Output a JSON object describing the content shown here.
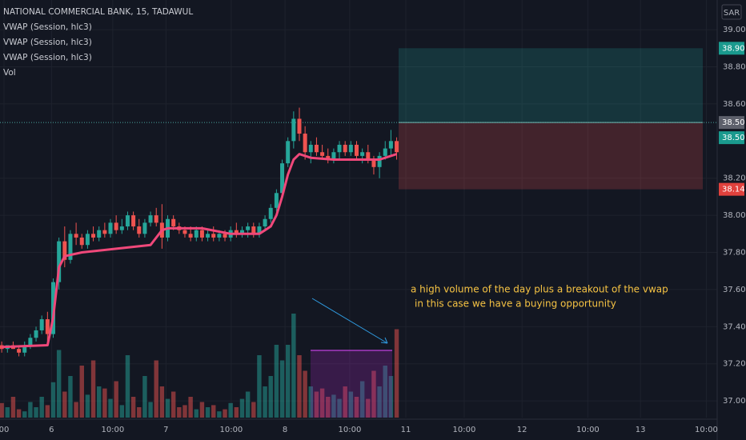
{
  "chart_data": {
    "type": "candlestick",
    "title": "NATIONAL COMMERCIAL BANK, 15, TADAWUL",
    "indicator_labels": [
      "VWAP (Session, hlc3)",
      "VWAP (Session, hlc3)",
      "VWAP (Session, hlc3)",
      "Vol"
    ],
    "currency": "SAR",
    "up_color": "#26a69a",
    "down_color": "#ef5350",
    "grid": true,
    "xlim": [
      -0.3,
      125
    ],
    "xticks": [
      {
        "value": 0.4,
        "label": "00"
      },
      {
        "value": 8.7,
        "label": "6"
      },
      {
        "value": 19.4,
        "label": "10:00"
      },
      {
        "value": 28.7,
        "label": "7"
      },
      {
        "value": 40.1,
        "label": "10:00"
      },
      {
        "value": 49.5,
        "label": "8"
      },
      {
        "value": 60.8,
        "label": "10:00"
      },
      {
        "value": 70.6,
        "label": "11"
      },
      {
        "value": 80.8,
        "label": "10:00"
      },
      {
        "value": 90.9,
        "label": "12"
      },
      {
        "value": 102.4,
        "label": "10:00"
      },
      {
        "value": 111.6,
        "label": "13"
      },
      {
        "value": 123.1,
        "label": "10:00"
      }
    ],
    "ylim": [
      36.91,
      39.16
    ],
    "yticks": [
      {
        "value": 39.0,
        "label": "39.00"
      },
      {
        "value": 38.8,
        "label": "38.80"
      },
      {
        "value": 38.6,
        "label": "38.60"
      },
      {
        "value": 38.2,
        "label": "38.20"
      },
      {
        "value": 38.0,
        "label": "38.00"
      },
      {
        "value": 37.8,
        "label": "37.80"
      },
      {
        "value": 37.6,
        "label": "37.60"
      },
      {
        "value": 37.4,
        "label": "37.40"
      },
      {
        "value": 37.2,
        "label": "37.20"
      },
      {
        "value": 37.0,
        "label": "37.00"
      }
    ],
    "open": [
      37.3,
      37.28,
      37.3,
      37.28,
      37.26,
      37.3,
      37.34,
      37.38,
      37.44,
      37.36,
      37.64,
      37.86,
      37.76,
      37.9,
      37.88,
      37.84,
      37.9,
      37.88,
      37.92,
      37.9,
      37.96,
      37.92,
      37.94,
      38.0,
      37.94,
      37.9,
      37.96,
      38.0,
      37.96,
      37.88,
      37.98,
      37.94,
      37.92,
      37.9,
      37.88,
      37.92,
      37.88,
      37.9,
      37.88,
      37.9,
      37.88,
      37.92,
      37.9,
      37.92,
      37.94,
      37.9,
      37.94,
      37.98,
      38.04,
      38.12,
      38.28,
      38.4,
      38.52,
      38.44,
      38.34,
      38.38,
      38.34,
      38.32,
      38.3,
      38.34,
      38.38,
      38.34,
      38.38,
      38.32,
      38.34,
      38.3,
      38.26,
      38.32,
      38.36,
      38.4
    ],
    "high": [
      37.32,
      37.3,
      37.32,
      37.3,
      37.32,
      37.36,
      37.4,
      37.46,
      37.48,
      37.66,
      37.88,
      37.94,
      37.92,
      37.96,
      37.9,
      37.92,
      37.94,
      37.94,
      37.96,
      37.98,
      38.0,
      37.98,
      38.02,
      38.02,
      37.98,
      37.98,
      38.02,
      38.04,
      38.06,
      38.0,
      38.0,
      37.96,
      37.94,
      37.94,
      37.94,
      37.94,
      37.92,
      37.94,
      37.92,
      37.92,
      37.94,
      37.96,
      37.94,
      37.96,
      37.96,
      37.96,
      38.0,
      38.06,
      38.14,
      38.3,
      38.42,
      38.56,
      38.58,
      38.48,
      38.4,
      38.42,
      38.38,
      38.36,
      38.36,
      38.4,
      38.4,
      38.4,
      38.4,
      38.36,
      38.38,
      38.32,
      38.34,
      38.4,
      38.46,
      38.42
    ],
    "low": [
      37.26,
      37.26,
      37.28,
      37.24,
      37.24,
      37.28,
      37.32,
      37.36,
      37.32,
      37.34,
      37.6,
      37.72,
      37.74,
      37.84,
      37.82,
      37.82,
      37.86,
      37.86,
      37.88,
      37.88,
      37.9,
      37.9,
      37.92,
      37.92,
      37.88,
      37.88,
      37.94,
      37.94,
      37.82,
      37.86,
      37.92,
      37.9,
      37.88,
      37.86,
      37.86,
      37.86,
      37.86,
      37.86,
      37.86,
      37.86,
      37.86,
      37.88,
      37.88,
      37.88,
      37.88,
      37.88,
      37.92,
      37.96,
      38.02,
      38.1,
      38.26,
      38.36,
      38.4,
      38.3,
      38.28,
      38.32,
      38.3,
      38.28,
      38.28,
      38.3,
      38.32,
      38.32,
      38.3,
      38.28,
      38.28,
      38.22,
      38.2,
      38.3,
      38.32,
      38.3
    ],
    "close": [
      37.28,
      37.3,
      37.28,
      37.26,
      37.3,
      37.34,
      37.38,
      37.44,
      37.36,
      37.64,
      37.86,
      37.76,
      37.9,
      37.88,
      37.84,
      37.9,
      37.88,
      37.92,
      37.9,
      37.96,
      37.92,
      37.94,
      38.0,
      37.94,
      37.9,
      37.96,
      38.0,
      37.96,
      37.88,
      37.98,
      37.94,
      37.92,
      37.9,
      37.88,
      37.92,
      37.88,
      37.9,
      37.88,
      37.9,
      37.88,
      37.92,
      37.9,
      37.92,
      37.94,
      37.9,
      37.94,
      37.98,
      38.04,
      38.12,
      38.28,
      38.4,
      38.52,
      38.44,
      38.34,
      38.38,
      38.34,
      38.32,
      38.3,
      38.34,
      38.38,
      38.34,
      38.38,
      38.32,
      38.34,
      38.3,
      38.26,
      38.32,
      38.36,
      38.4,
      38.34
    ],
    "volume_ylim": [
      0,
      200
    ],
    "volume": [
      14,
      10,
      20,
      8,
      6,
      15,
      10,
      20,
      12,
      34,
      65,
      25,
      40,
      15,
      50,
      22,
      55,
      30,
      28,
      18,
      35,
      12,
      60,
      20,
      10,
      40,
      15,
      55,
      30,
      18,
      25,
      10,
      12,
      20,
      8,
      15,
      10,
      12,
      6,
      8,
      14,
      10,
      18,
      25,
      15,
      60,
      30,
      40,
      70,
      55,
      70,
      100,
      60,
      45,
      30,
      25,
      28,
      20,
      22,
      18,
      30,
      25,
      20,
      35,
      18,
      45,
      30,
      50,
      40,
      85
    ],
    "vwap": {
      "color": "#f0487a",
      "x": [
        0,
        8,
        9,
        10,
        11,
        14,
        20,
        26,
        27,
        28,
        29,
        35,
        40,
        45,
        46,
        47,
        48,
        49,
        50,
        51,
        52,
        54,
        58,
        62,
        66,
        69
      ],
      "values": [
        37.29,
        37.3,
        37.45,
        37.72,
        37.78,
        37.8,
        37.82,
        37.84,
        37.88,
        37.92,
        37.93,
        37.93,
        37.9,
        37.9,
        37.92,
        37.94,
        38.0,
        38.1,
        38.22,
        38.3,
        38.33,
        38.31,
        38.3,
        38.3,
        38.3,
        38.33
      ]
    },
    "position": {
      "target": {
        "value": 38.9,
        "label": "38.90"
      },
      "entry": {
        "value": 38.5,
        "label": "38.50"
      },
      "stop": {
        "value": 38.14,
        "label": "38.14"
      }
    },
    "annotations": [
      "a high volume of the day plus a breakout of the vwap",
      "in this case we have a buying opportunity"
    ]
  }
}
